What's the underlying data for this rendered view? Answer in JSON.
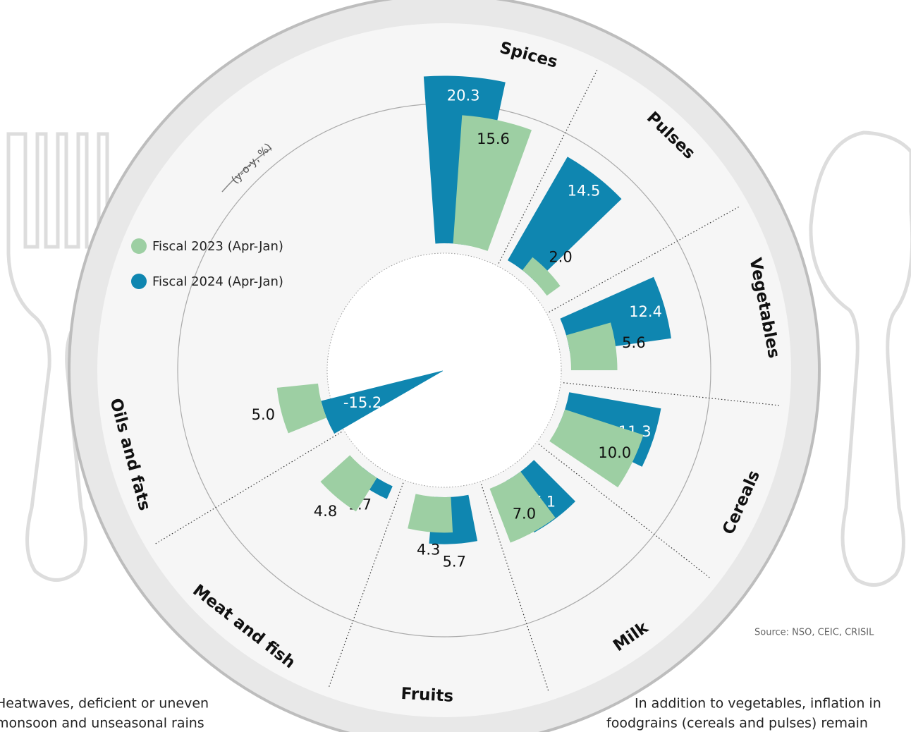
{
  "chart_data": {
    "type": "bar",
    "annotation": "(y-o-y, %)",
    "categories": [
      "Spices",
      "Pulses",
      "Vegetables",
      "Cereals",
      "Milk",
      "Fruits",
      "Meat and fish",
      "Oils and fats"
    ],
    "series": [
      {
        "name": "Fiscal 2023 (Apr-Jan)",
        "color": "#9dcfa3",
        "values": [
          15.6,
          2.0,
          5.6,
          10.0,
          7.0,
          4.3,
          4.8,
          5.0
        ],
        "value_labels": [
          "15.6",
          "2.0",
          "5.6",
          "10.0",
          "7.0",
          "4.3",
          "4.8",
          "5.0"
        ]
      },
      {
        "name": "Fiscal 2024 (Apr-Jan)",
        "color": "#0f86b0",
        "values": [
          20.3,
          14.5,
          12.4,
          11.3,
          7.1,
          5.7,
          1.7,
          -15.2
        ],
        "value_labels": [
          "20.3",
          "14.5",
          "12.4",
          "11.3",
          "7.1",
          "5.7",
          "1.7",
          "-15.2"
        ]
      }
    ],
    "source": "Source: NSO, CEIC, CRISIL",
    "notes": [
      [
        "Heatwaves, deficient or uneven",
        "monsoon and unseasonal rains"
      ],
      [
        "In addition to vegetables, inflation in",
        "foodgrains (cereals and pulses) remain"
      ]
    ]
  }
}
